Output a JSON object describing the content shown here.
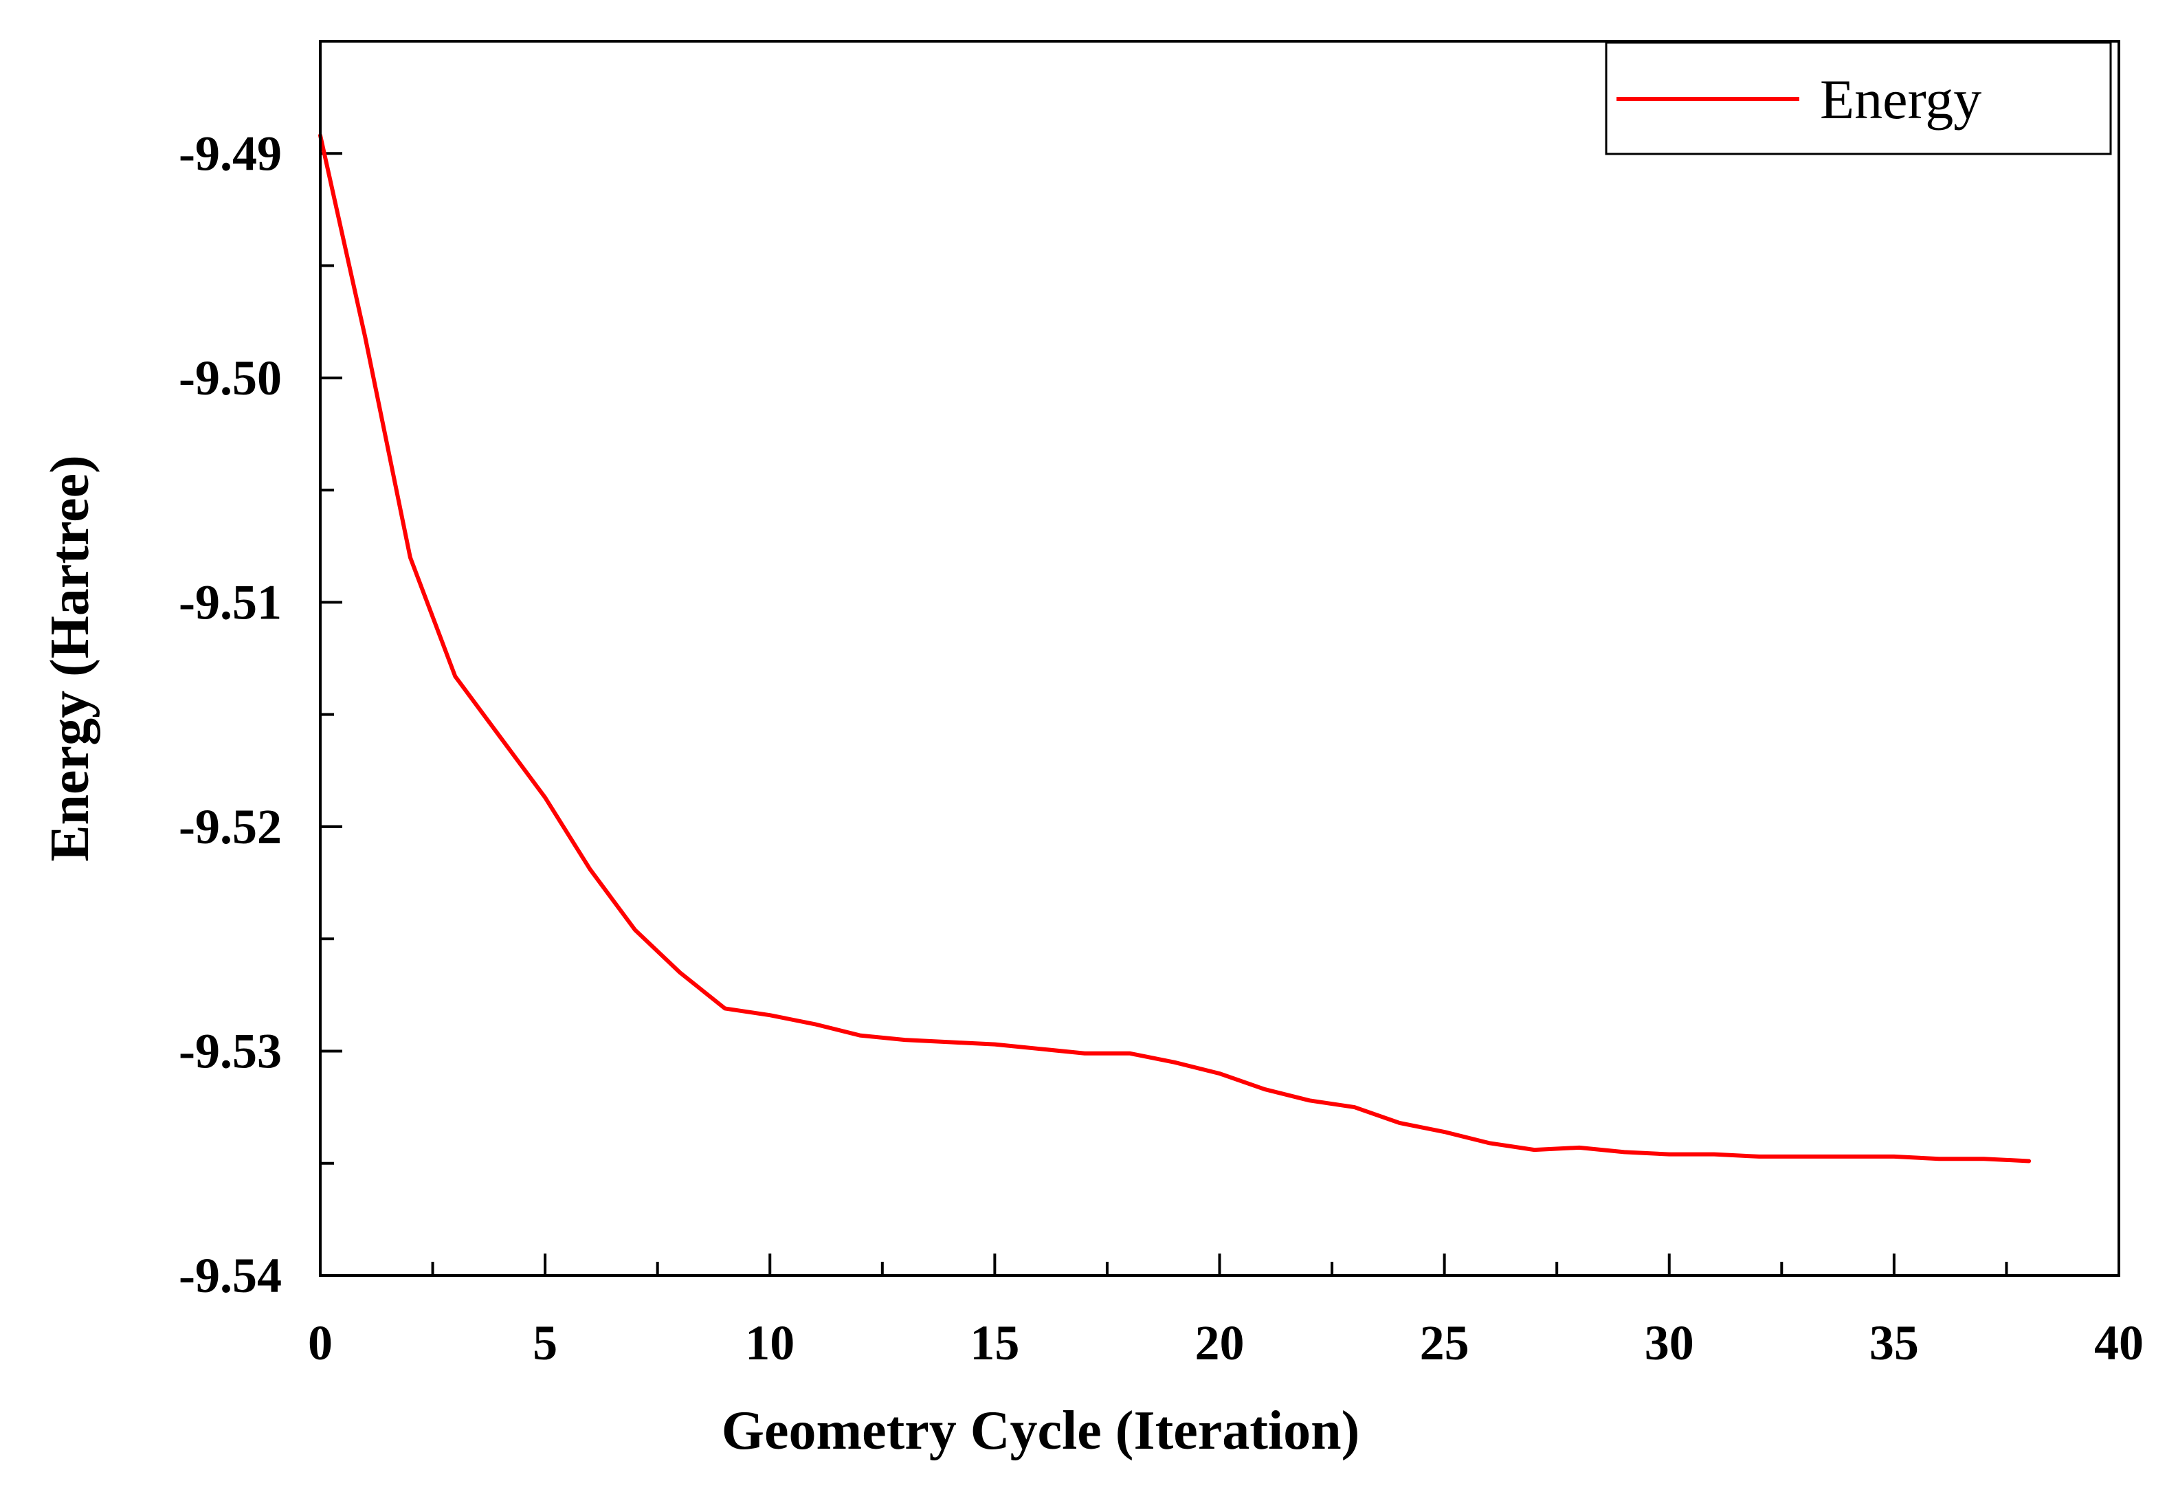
{
  "chart_data": {
    "type": "line",
    "title": "",
    "xlabel": "Geometry Cycle  (Iteration)",
    "ylabel": "Energy  (Hartree)",
    "xlim": [
      0,
      40
    ],
    "ylim": [
      -9.54,
      -9.485
    ],
    "x_ticks": [
      0,
      5,
      10,
      15,
      20,
      25,
      30,
      35,
      40
    ],
    "x_tick_labels": [
      "0",
      "5",
      "10",
      "15",
      "20",
      "25",
      "30",
      "35",
      "40"
    ],
    "y_ticks": [
      -9.54,
      -9.53,
      -9.52,
      -9.51,
      -9.5,
      -9.49
    ],
    "y_tick_labels": [
      "-9.54",
      "-9.53",
      "-9.52",
      "-9.51",
      "-9.50",
      "-9.49"
    ],
    "grid": false,
    "legend_position": "top-right",
    "series": [
      {
        "name": "Energy",
        "color": "#ff0000",
        "x": [
          0,
          1,
          2,
          3,
          4,
          5,
          6,
          7,
          8,
          9,
          10,
          11,
          12,
          13,
          14,
          15,
          16,
          17,
          18,
          19,
          20,
          21,
          22,
          23,
          24,
          25,
          26,
          27,
          28,
          29,
          30,
          31,
          32,
          33,
          34,
          35,
          36,
          37,
          38
        ],
        "values": [
          -9.4892,
          -9.4982,
          -9.508,
          -9.5133,
          -9.516,
          -9.5187,
          -9.5219,
          -9.5246,
          -9.5265,
          -9.5281,
          -9.5284,
          -9.5288,
          -9.5293,
          -9.5295,
          -9.5296,
          -9.5297,
          -9.5299,
          -9.5301,
          -9.5301,
          -9.5305,
          -9.531,
          -9.5317,
          -9.5322,
          -9.5325,
          -9.5332,
          -9.5336,
          -9.5341,
          -9.5344,
          -9.5343,
          -9.5345,
          -9.5346,
          -9.5346,
          -9.5347,
          -9.5347,
          -9.5347,
          -9.5347,
          -9.5348,
          -9.5348,
          -9.5349
        ]
      }
    ]
  }
}
